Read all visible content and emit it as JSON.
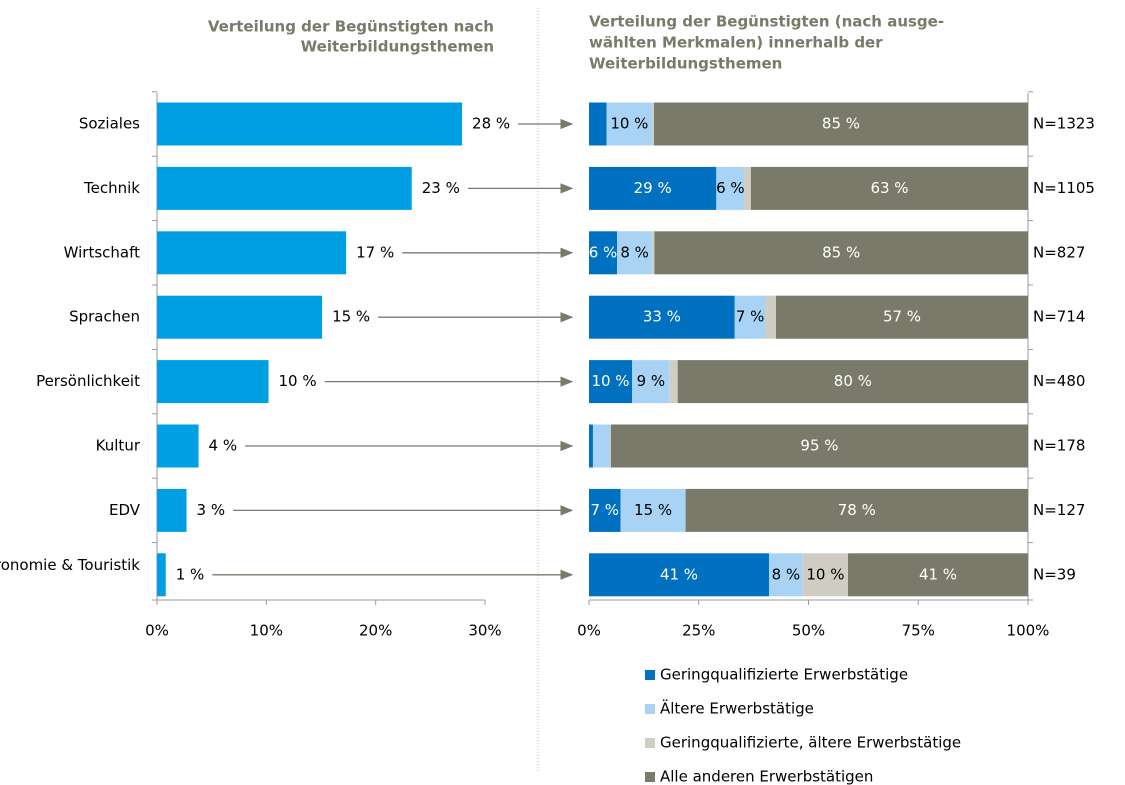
{
  "chart_data": [
    {
      "type": "bar",
      "orientation": "horizontal",
      "title": [
        "Verteilung der Begünstigten nach",
        "Weiterbildungsthemen"
      ],
      "categories": [
        "Soziales",
        "Technik",
        "Wirtschaft",
        "Sprachen",
        "Persönlichkeit",
        "Kultur",
        "EDV",
        "Gastronomie & Touristik"
      ],
      "values": [
        27.9,
        23.3,
        17.3,
        15.1,
        10.2,
        3.8,
        2.7,
        0.8
      ],
      "value_labels": [
        "28 %",
        "23 %",
        "17 %",
        "15 %",
        "10 %",
        "4 %",
        "3 %",
        "1 %"
      ],
      "color": "#009fe3",
      "xlim": [
        0,
        30
      ],
      "xticks": [
        {
          "value": 0,
          "label": "0%"
        },
        {
          "value": 10,
          "label": "10%"
        },
        {
          "value": 20,
          "label": "20%"
        },
        {
          "value": 30,
          "label": "30%"
        }
      ]
    },
    {
      "type": "stacked_bar",
      "orientation": "horizontal",
      "title": [
        "Verteilung der Begünstigten (nach ausge-",
        "wählten Merkmalen) innerhalb der",
        "Weiterbildungsthemen"
      ],
      "categories": [
        "Soziales",
        "Technik",
        "Wirtschaft",
        "Sprachen",
        "Persönlichkeit",
        "Kultur",
        "EDV",
        "Gastronomie & Touristik"
      ],
      "n_labels": [
        "N=1323",
        "N=1105",
        "N=827",
        "N=714",
        "N=480",
        "N=178",
        "N=127",
        "N=39"
      ],
      "series": [
        {
          "name": "Geringqualifizierte Erwerbstätige",
          "color": "#0070c0",
          "values": [
            4,
            29,
            6.4,
            33.2,
            9.8,
            0.9,
            7.2,
            41
          ],
          "value_labels": [
            null,
            "29 %",
            "6 %",
            "33 %",
            "10 %",
            null,
            "7 %",
            "41 %"
          ]
        },
        {
          "name": "Ältere Erwerbstätige",
          "color": "#a9d3f5",
          "values": [
            10.4,
            6.4,
            8,
            7,
            8.6,
            3.9,
            14.8,
            7.7
          ],
          "value_labels": [
            "10 %",
            "6 %",
            "8 %",
            "7 %",
            "9 %",
            null,
            "15 %",
            "8 %"
          ]
        },
        {
          "name": "Geringqualifizierte, ältere Erwerbstätige",
          "color": "#d0cec2",
          "values": [
            0.4,
            1.5,
            0.5,
            2.4,
            1.8,
            0.2,
            0,
            10.3
          ],
          "value_labels": [
            null,
            null,
            null,
            null,
            null,
            null,
            null,
            "10 %"
          ]
        },
        {
          "name": "Alle anderen Erwerbstätigen",
          "color": "#7a7a6a",
          "values": [
            85.2,
            63.1,
            85.1,
            57.4,
            79.8,
            95,
            78,
            41
          ],
          "value_labels": [
            "85 %",
            "63 %",
            "85 %",
            "57 %",
            "80 %",
            "95 %",
            "78 %",
            "41 %"
          ]
        }
      ],
      "xlim": [
        0,
        100
      ],
      "xticks": [
        {
          "value": 0,
          "label": "0%"
        },
        {
          "value": 25,
          "label": "25%"
        },
        {
          "value": 50,
          "label": "50%"
        },
        {
          "value": 75,
          "label": "75%"
        },
        {
          "value": 100,
          "label": "100%"
        }
      ]
    }
  ]
}
